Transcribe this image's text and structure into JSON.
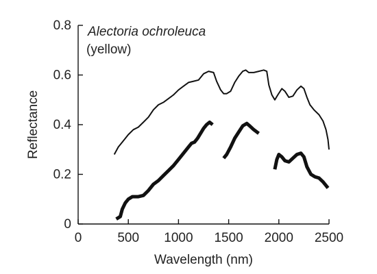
{
  "chart_data": {
    "type": "line",
    "xlabel": "Wavelength (nm)",
    "ylabel": "Reflectance",
    "xlim": [
      0,
      2500
    ],
    "ylim": [
      0,
      0.8
    ],
    "x_ticks": [
      0,
      500,
      1000,
      1500,
      2000,
      2500
    ],
    "y_ticks": [
      0,
      0.2,
      0.4,
      0.6,
      0.8
    ],
    "y_tick_labels": [
      "0",
      "0.2",
      "0.4",
      "0.6",
      "0.8"
    ],
    "grid": false,
    "annotation": {
      "species": "Alectoria ochroleuca",
      "note": "(yellow)"
    },
    "line_color": "#111111",
    "series": [
      {
        "style": "thin",
        "segments": [
          [
            [
              360,
              0.28
            ],
            [
              400,
              0.31
            ],
            [
              450,
              0.335
            ],
            [
              500,
              0.36
            ],
            [
              550,
              0.38
            ],
            [
              600,
              0.39
            ],
            [
              650,
              0.41
            ],
            [
              700,
              0.43
            ],
            [
              750,
              0.46
            ],
            [
              800,
              0.48
            ],
            [
              850,
              0.49
            ],
            [
              900,
              0.505
            ],
            [
              950,
              0.52
            ],
            [
              1000,
              0.54
            ],
            [
              1050,
              0.555
            ],
            [
              1100,
              0.57
            ],
            [
              1150,
              0.575
            ],
            [
              1200,
              0.58
            ],
            [
              1250,
              0.605
            ],
            [
              1300,
              0.615
            ],
            [
              1350,
              0.61
            ],
            [
              1380,
              0.575
            ],
            [
              1420,
              0.54
            ],
            [
              1450,
              0.525
            ],
            [
              1480,
              0.525
            ],
            [
              1520,
              0.535
            ],
            [
              1560,
              0.57
            ],
            [
              1600,
              0.595
            ],
            [
              1640,
              0.615
            ],
            [
              1670,
              0.62
            ],
            [
              1700,
              0.61
            ],
            [
              1750,
              0.61
            ],
            [
              1800,
              0.615
            ],
            [
              1850,
              0.62
            ],
            [
              1880,
              0.615
            ],
            [
              1900,
              0.56
            ],
            [
              1930,
              0.52
            ],
            [
              1960,
              0.5
            ],
            [
              1990,
              0.52
            ],
            [
              2030,
              0.545
            ],
            [
              2060,
              0.535
            ],
            [
              2100,
              0.51
            ],
            [
              2140,
              0.515
            ],
            [
              2180,
              0.54
            ],
            [
              2220,
              0.555
            ],
            [
              2250,
              0.545
            ],
            [
              2280,
              0.51
            ],
            [
              2310,
              0.48
            ],
            [
              2350,
              0.46
            ],
            [
              2400,
              0.44
            ],
            [
              2440,
              0.415
            ],
            [
              2470,
              0.38
            ],
            [
              2490,
              0.34
            ],
            [
              2500,
              0.3
            ]
          ]
        ]
      },
      {
        "style": "thick",
        "segments": [
          [
            [
              380,
              0.02
            ],
            [
              420,
              0.03
            ],
            [
              440,
              0.06
            ],
            [
              470,
              0.085
            ],
            [
              500,
              0.1
            ],
            [
              540,
              0.11
            ],
            [
              600,
              0.11
            ],
            [
              650,
              0.115
            ],
            [
              700,
              0.135
            ],
            [
              750,
              0.16
            ],
            [
              800,
              0.175
            ],
            [
              850,
              0.195
            ],
            [
              900,
              0.215
            ],
            [
              950,
              0.235
            ],
            [
              1000,
              0.26
            ],
            [
              1050,
              0.285
            ],
            [
              1100,
              0.31
            ],
            [
              1130,
              0.325
            ],
            [
              1160,
              0.33
            ],
            [
              1190,
              0.345
            ],
            [
              1220,
              0.365
            ],
            [
              1250,
              0.385
            ],
            [
              1280,
              0.4
            ],
            [
              1310,
              0.41
            ],
            [
              1340,
              0.4
            ]
          ],
          [
            [
              1450,
              0.265
            ],
            [
              1480,
              0.28
            ],
            [
              1520,
              0.31
            ],
            [
              1560,
              0.345
            ],
            [
              1600,
              0.37
            ],
            [
              1640,
              0.395
            ],
            [
              1680,
              0.405
            ],
            [
              1710,
              0.395
            ],
            [
              1750,
              0.38
            ],
            [
              1800,
              0.365
            ]
          ],
          [
            [
              1960,
              0.22
            ],
            [
              1980,
              0.26
            ],
            [
              2000,
              0.28
            ],
            [
              2030,
              0.27
            ],
            [
              2060,
              0.255
            ],
            [
              2100,
              0.25
            ],
            [
              2140,
              0.265
            ],
            [
              2180,
              0.28
            ],
            [
              2220,
              0.285
            ],
            [
              2250,
              0.27
            ],
            [
              2280,
              0.23
            ],
            [
              2320,
              0.2
            ],
            [
              2360,
              0.19
            ],
            [
              2400,
              0.185
            ],
            [
              2440,
              0.17
            ],
            [
              2470,
              0.155
            ],
            [
              2490,
              0.145
            ]
          ]
        ]
      }
    ]
  }
}
